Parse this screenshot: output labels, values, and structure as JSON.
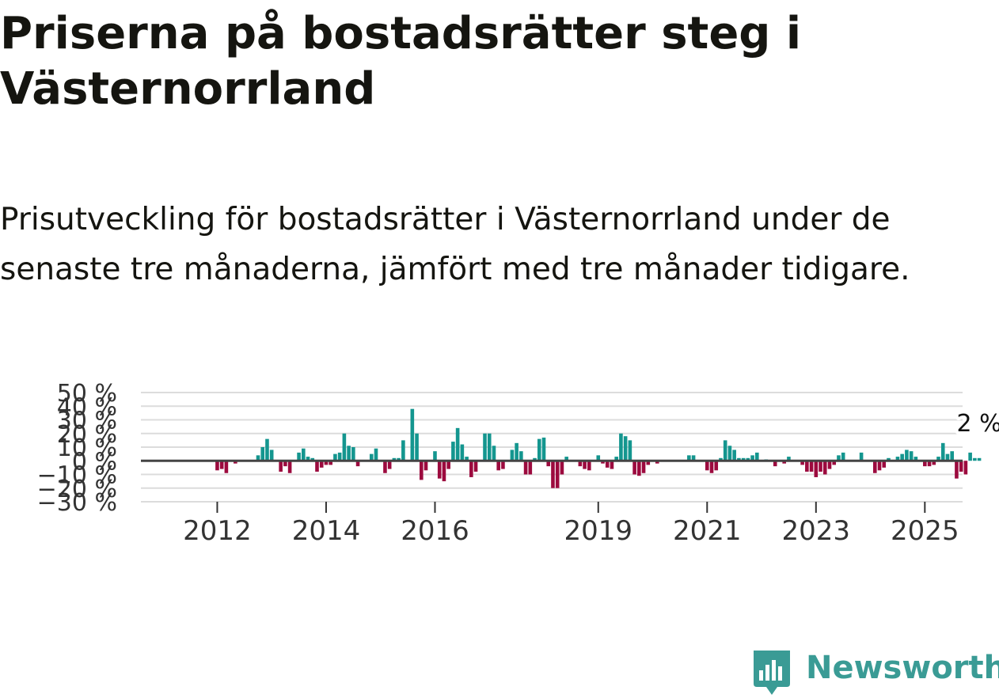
{
  "header": {
    "title": "Priserna på bostadsrätter steg i Västernorrland",
    "subtitle": "Prisutveckling för bostadsrätter i Västernorrland under de senaste tre månaderna, jämfört med tre månader tidigare."
  },
  "brand": {
    "name": "Newsworthy"
  },
  "colors": {
    "positive": "#14968f",
    "negative": "#9c0a3e",
    "grid": "#dcdcdc",
    "zero_line": "#444444",
    "brand": "#3a9b95"
  },
  "chart_data": {
    "type": "bar",
    "title": "Prisutveckling för bostadsrätter i Västernorrland",
    "xlabel": "",
    "ylabel": "",
    "ylim": [
      -30,
      50
    ],
    "y_ticks": [
      -30,
      -20,
      -10,
      0,
      10,
      20,
      30,
      40,
      50
    ],
    "y_tick_labels": [
      "−30 %",
      "−20 %",
      "−10 %",
      "0 %",
      "10 %",
      "20 %",
      "30 %",
      "40 %",
      "50 %"
    ],
    "x_start": "2011-05",
    "x_tick_labels": [
      {
        "label": "2012",
        "index": 8
      },
      {
        "label": "2014",
        "index": 32
      },
      {
        "label": "2016",
        "index": 56
      },
      {
        "label": "2019",
        "index": 92
      },
      {
        "label": "2021",
        "index": 116
      },
      {
        "label": "2023",
        "index": 140
      },
      {
        "label": "2025",
        "index": 164
      }
    ],
    "values": [
      0,
      0,
      0,
      0,
      0,
      0,
      0,
      0,
      -7,
      -6,
      -9,
      0,
      -2,
      0,
      0,
      0,
      0,
      4,
      10,
      16,
      8,
      0,
      -8,
      -4,
      -9,
      0,
      6,
      9,
      3,
      2,
      -8,
      -5,
      -3,
      -3,
      5,
      6,
      20,
      11,
      10,
      -4,
      0,
      0,
      5,
      9,
      0,
      -9,
      -6,
      2,
      2,
      15,
      0,
      38,
      20,
      -14,
      -7,
      0,
      7,
      -13,
      -15,
      -6,
      14,
      24,
      12,
      3,
      -12,
      -8,
      0,
      20,
      20,
      11,
      -7,
      -6,
      0,
      8,
      13,
      7,
      -10,
      -10,
      2,
      16,
      17,
      -4,
      -20,
      -20,
      -10,
      3,
      0,
      0,
      -4,
      -6,
      -7,
      0,
      4,
      -2,
      -5,
      -6,
      3,
      20,
      18,
      15,
      -10,
      -11,
      -9,
      -3,
      0,
      -2,
      0,
      0,
      0,
      0,
      0,
      0,
      4,
      4,
      0,
      0,
      -7,
      -9,
      -7,
      2,
      15,
      11,
      8,
      2,
      2,
      2,
      4,
      6,
      0,
      1,
      0,
      -4,
      0,
      -2,
      3,
      0,
      0,
      -3,
      -8,
      -8,
      -12,
      -8,
      -10,
      -6,
      -3,
      4,
      6,
      0,
      0,
      0,
      6,
      0,
      0,
      -9,
      -7,
      -5,
      2,
      0,
      3,
      5,
      8,
      7,
      3,
      0,
      -4,
      -4,
      -3,
      3,
      13,
      5,
      7,
      -13,
      -8,
      -10,
      6,
      2,
      2
    ],
    "last_value_label": "2 %"
  }
}
